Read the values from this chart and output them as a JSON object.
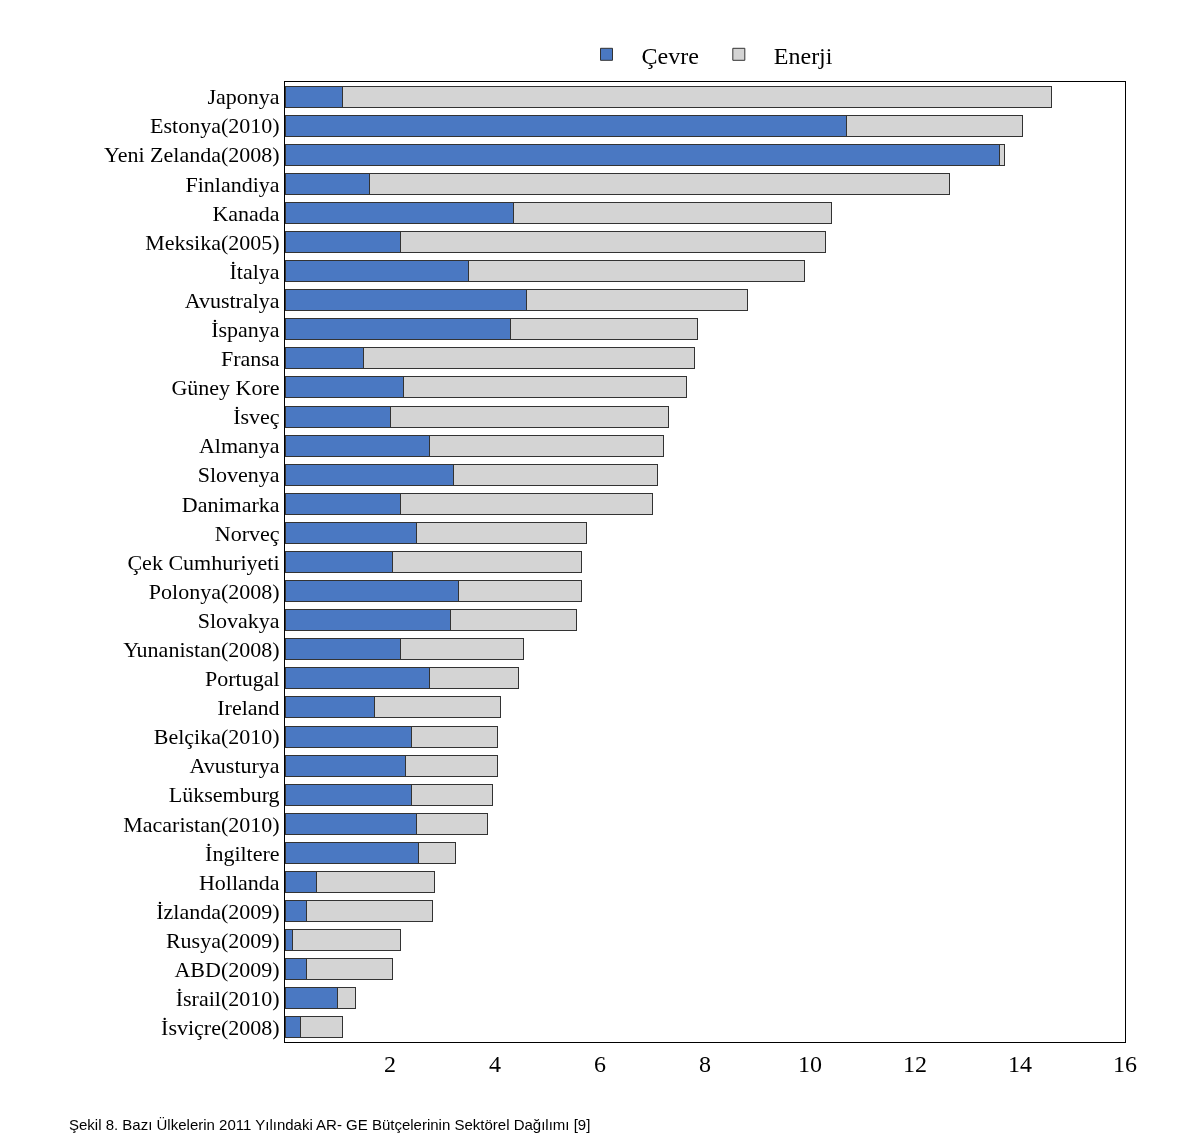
{
  "chart_data": {
    "type": "bar",
    "orientation": "horizontal",
    "stacked": true,
    "categories": [
      "Japonya",
      "Estonya(2010)",
      "Yeni Zelanda(2008)",
      "Finlandiya",
      "Kanada",
      "Meksika(2005)",
      "İtalya",
      "Avustralya",
      "İspanya",
      "Fransa",
      "Güney Kore",
      "İsveç",
      "Almanya",
      "Slovenya",
      "Danimarka",
      "Norveç",
      "Çek Cumhuriyeti",
      "Polonya(2008)",
      "Slovakya",
      "Yunanistan(2008)",
      "Portugal",
      "Ireland",
      "Belçika(2010)",
      "Avusturya",
      "Lüksemburg",
      "Macaristan(2010)",
      "İngiltere",
      "Hollanda",
      "İzlanda(2009)",
      "Rusya(2009)",
      "ABD(2009)",
      "İsrail(2010)",
      "İsviçre(2008)"
    ],
    "series": [
      {
        "name": "Çevre",
        "color": "#4a78c2",
        "values": [
          1.1,
          10.7,
          13.6,
          1.6,
          4.35,
          2.2,
          3.5,
          4.6,
          4.3,
          1.5,
          2.25,
          2.0,
          2.75,
          3.2,
          2.2,
          2.5,
          2.05,
          3.3,
          3.15,
          2.2,
          2.75,
          1.7,
          2.4,
          2.3,
          2.4,
          2.5,
          2.55,
          0.6,
          0.4,
          0.15,
          0.4,
          1.0,
          0.3
        ]
      },
      {
        "name": "Enerji",
        "color": "#d4d4d4",
        "values": [
          13.5,
          3.35,
          0.1,
          11.05,
          6.05,
          8.1,
          6.4,
          4.2,
          3.55,
          6.3,
          5.4,
          5.3,
          4.45,
          3.9,
          4.8,
          3.25,
          3.6,
          2.35,
          2.4,
          2.35,
          1.7,
          2.4,
          1.65,
          1.75,
          1.55,
          1.35,
          0.7,
          2.25,
          2.4,
          2.05,
          1.65,
          0.35,
          0.8
        ]
      }
    ],
    "xlim": [
      0,
      16
    ],
    "xticks": [
      2,
      4,
      6,
      8,
      10,
      12,
      14,
      16
    ],
    "legend": "top",
    "annotations": [
      "Şekil 8. Bazı Ülkelerin 2011 Yılındaki AR- GE Bütçelerinin Sektörel Dağılımı [9]"
    ]
  }
}
